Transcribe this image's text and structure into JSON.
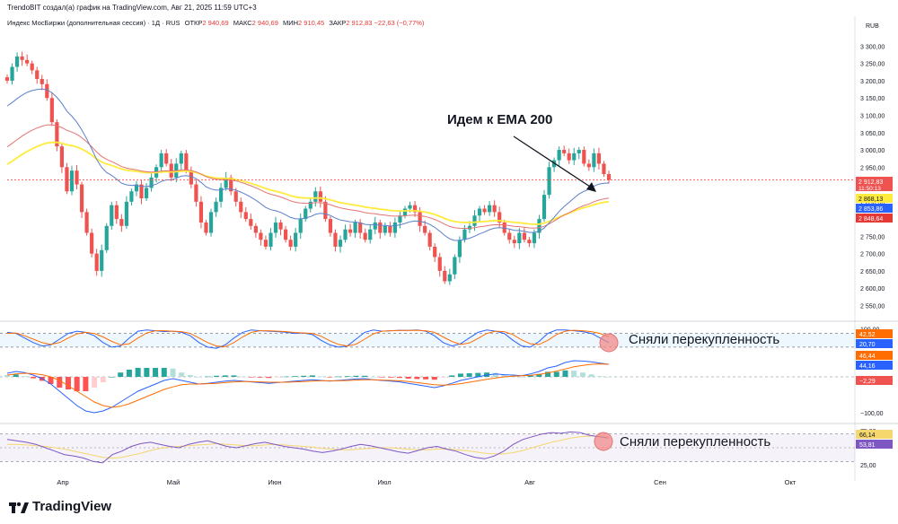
{
  "header": {
    "attribution": "TrendoBIT создал(а) график на TradingView.com, Авг 21, 2025 11:59 UTC+3",
    "instrument": "Индекс МосБиржи (дополнительная сессия) · 1Д · RUS",
    "open_label": "ОТКР",
    "open_value": "2 940,69",
    "high_label": "МАКС",
    "high_value": "2 940,69",
    "low_label": "МИН",
    "low_value": "2 910,45",
    "close_label": "ЗАКР",
    "close_value": "2 912,83",
    "change": "−22,63 (−0,77%)"
  },
  "annotations": {
    "main": "Идем к EMA 200",
    "stoch": "Сняли перекупленность",
    "rsi": "Сняли перекупленность"
  },
  "branding": {
    "logo_text": "TradingView"
  },
  "colors": {
    "up": "#26a69a",
    "down": "#ef5350",
    "ema_yellow": "#ffeb3b",
    "ema_red": "#e57373",
    "ema_blue": "#5c7fcc",
    "stoch_k": "#2962ff",
    "stoch_d": "#ff6d00",
    "rsi": "#7e57c2",
    "rsi_ma": "#f5d76e",
    "circle": "#f08a8a"
  },
  "chart_data": [
    {
      "type": "candlestick",
      "title": "Индекс МосБиржи (дополнительная сессия) · 1Д · RUS",
      "currency": "RUB",
      "ylim": [
        2520,
        3340
      ],
      "yticks": [
        2550,
        2600,
        2650,
        2700,
        2750,
        2800,
        2850,
        2900,
        2950,
        3000,
        3050,
        3100,
        3150,
        3200,
        3250,
        3300
      ],
      "ytick_labels": [
        "2 550,00",
        "2 600,00",
        "2 650,00",
        "2 700,00",
        "2 750,00",
        "2 800,00",
        "2 850,00",
        "2 900,00",
        "2 950,00",
        "3 000,00",
        "3 050,00",
        "3 100,00",
        "3 150,00",
        "3 200,00",
        "3 250,00",
        "3 300,00"
      ],
      "x_ticks": [
        "Апр",
        "Май",
        "Июн",
        "Июл",
        "Авг",
        "Сен",
        "Окт"
      ],
      "closes": [
        3200,
        3240,
        3270,
        3260,
        3250,
        3230,
        3205,
        3190,
        3150,
        3080,
        3010,
        2950,
        2880,
        2940,
        2900,
        2820,
        2760,
        2700,
        2650,
        2710,
        2780,
        2840,
        2800,
        2780,
        2850,
        2880,
        2900,
        2860,
        2890,
        2920,
        2950,
        2990,
        2960,
        2920,
        2960,
        2990,
        2940,
        2900,
        2850,
        2790,
        2760,
        2820,
        2850,
        2890,
        2920,
        2880,
        2850,
        2820,
        2800,
        2780,
        2760,
        2740,
        2720,
        2760,
        2790,
        2770,
        2740,
        2720,
        2760,
        2800,
        2830,
        2850,
        2880,
        2850,
        2800,
        2760,
        2720,
        2740,
        2770,
        2760,
        2790,
        2760,
        2740,
        2770,
        2790,
        2760,
        2780,
        2760,
        2790,
        2810,
        2830,
        2840,
        2820,
        2780,
        2760,
        2720,
        2690,
        2650,
        2620,
        2640,
        2690,
        2740,
        2770,
        2780,
        2810,
        2830,
        2820,
        2840,
        2820,
        2790,
        2760,
        2740,
        2730,
        2760,
        2740,
        2730,
        2760,
        2800,
        2870,
        2950,
        2970,
        3000,
        2990,
        2970,
        2990,
        3000,
        2960,
        2950,
        2990,
        2960,
        2930,
        2913
      ],
      "ema_yellow_last": 2868.13,
      "ema_blue_last": 2853.86,
      "ema_red_last": 2848.64,
      "price_labels": [
        {
          "value": "2 912,83",
          "sub": "11:50:13",
          "color": "#ef5350"
        },
        {
          "value": "2 868,13",
          "color": "#ffeb3b"
        },
        {
          "value": "2 853,86",
          "color": "#2962ff"
        },
        {
          "value": "2 848,64",
          "color": "#e53935"
        }
      ]
    },
    {
      "type": "line",
      "title": "Stochastic",
      "ylim": [
        0,
        110
      ],
      "yticks": [
        100
      ],
      "ytick_labels": [
        "100,00"
      ],
      "bands": [
        20,
        80
      ],
      "k": [
        85,
        80,
        60,
        40,
        25,
        30,
        55,
        80,
        90,
        85,
        70,
        40,
        20,
        25,
        60,
        90,
        95,
        92,
        88,
        90,
        85,
        70,
        40,
        20,
        15,
        30,
        60,
        85,
        95,
        92,
        90,
        88,
        85,
        80,
        82,
        75,
        50,
        30,
        20,
        25,
        55,
        85,
        95,
        90,
        92,
        94,
        93,
        95,
        90,
        70,
        40,
        25,
        35,
        60,
        85,
        95,
        90,
        80,
        50,
        25,
        20,
        45,
        80,
        95,
        95,
        92,
        88,
        80,
        60,
        40
      ],
      "d": [
        80,
        82,
        70,
        55,
        40,
        32,
        40,
        60,
        78,
        85,
        80,
        65,
        45,
        30,
        35,
        60,
        82,
        92,
        92,
        90,
        88,
        80,
        60,
        40,
        25,
        22,
        40,
        65,
        85,
        92,
        92,
        90,
        88,
        84,
        82,
        80,
        68,
        48,
        32,
        25,
        33,
        55,
        78,
        90,
        92,
        93,
        93,
        94,
        92,
        85,
        65,
        45,
        32,
        38,
        58,
        80,
        90,
        88,
        75,
        52,
        35,
        32,
        50,
        75,
        90,
        94,
        92,
        88,
        80,
        65
      ],
      "labels": [
        {
          "value": "42,52",
          "color": "#ff6d00"
        },
        {
          "value": "20,70",
          "color": "#2962ff"
        }
      ]
    },
    {
      "type": "line",
      "title": "MACD",
      "ylim": [
        -125,
        60
      ],
      "yticks": [
        -100
      ],
      "ytick_labels": [
        "−100,00"
      ],
      "macd": [
        10,
        15,
        12,
        5,
        -5,
        -20,
        -40,
        -60,
        -80,
        -95,
        -100,
        -95,
        -85,
        -70,
        -55,
        -40,
        -30,
        -20,
        -10,
        -5,
        -10,
        -15,
        -20,
        -18,
        -15,
        -12,
        -10,
        -12,
        -14,
        -16,
        -18,
        -16,
        -14,
        -12,
        -10,
        -8,
        -10,
        -12,
        -10,
        -8,
        -6,
        -5,
        -8,
        -10,
        -12,
        -14,
        -18,
        -22,
        -26,
        -30,
        -25,
        -18,
        -10,
        -5,
        0,
        5,
        8,
        6,
        5,
        3,
        8,
        15,
        25,
        30,
        40,
        45,
        44,
        42,
        38,
        35
      ],
      "signal": [
        5,
        8,
        10,
        9,
        6,
        0,
        -10,
        -25,
        -40,
        -55,
        -70,
        -80,
        -85,
        -82,
        -75,
        -65,
        -55,
        -45,
        -35,
        -28,
        -22,
        -20,
        -20,
        -19,
        -18,
        -16,
        -14,
        -13,
        -13,
        -14,
        -15,
        -15,
        -15,
        -14,
        -13,
        -12,
        -11,
        -11,
        -11,
        -10,
        -9,
        -8,
        -8,
        -9,
        -10,
        -11,
        -13,
        -16,
        -19,
        -22,
        -23,
        -22,
        -19,
        -15,
        -11,
        -7,
        -3,
        0,
        2,
        3,
        4,
        7,
        11,
        16,
        22,
        28,
        32,
        35,
        36,
        35
      ],
      "labels": [
        {
          "value": "46,44",
          "color": "#ff6d00"
        },
        {
          "value": "44,16",
          "color": "#2962ff"
        },
        {
          "value": "−2,29",
          "color": "#ef5350"
        }
      ]
    },
    {
      "type": "line",
      "title": "RSI",
      "ylim": [
        20,
        80
      ],
      "yticks": [
        25,
        75
      ],
      "ytick_labels": [
        "25,00",
        "75,00"
      ],
      "bands": [
        30,
        70
      ],
      "rsi": [
        62,
        60,
        58,
        55,
        50,
        45,
        40,
        38,
        35,
        30,
        28,
        40,
        45,
        52,
        56,
        58,
        55,
        52,
        50,
        55,
        58,
        60,
        56,
        52,
        50,
        53,
        56,
        58,
        55,
        52,
        50,
        48,
        45,
        43,
        45,
        48,
        52,
        55,
        53,
        50,
        47,
        44,
        42,
        46,
        50,
        52,
        48,
        45,
        40,
        36,
        34,
        38,
        45,
        55,
        62,
        66,
        70,
        72,
        71,
        73,
        72,
        68,
        66,
        64
      ],
      "rsi_ma": [
        55,
        55,
        54,
        53,
        52,
        50,
        48,
        45,
        42,
        39,
        36,
        35,
        36,
        39,
        42,
        46,
        49,
        51,
        52,
        53,
        54,
        55,
        56,
        55,
        54,
        53,
        53,
        54,
        55,
        54,
        53,
        52,
        51,
        49,
        48,
        47,
        47,
        48,
        49,
        50,
        50,
        49,
        48,
        47,
        47,
        48,
        48,
        47,
        46,
        44,
        42,
        41,
        41,
        43,
        46,
        50,
        54,
        58,
        61,
        64,
        66,
        67,
        67,
        66
      ],
      "labels": [
        {
          "value": "66,14",
          "color": "#f5d76e"
        },
        {
          "value": "53,81",
          "color": "#7e57c2"
        }
      ]
    }
  ]
}
